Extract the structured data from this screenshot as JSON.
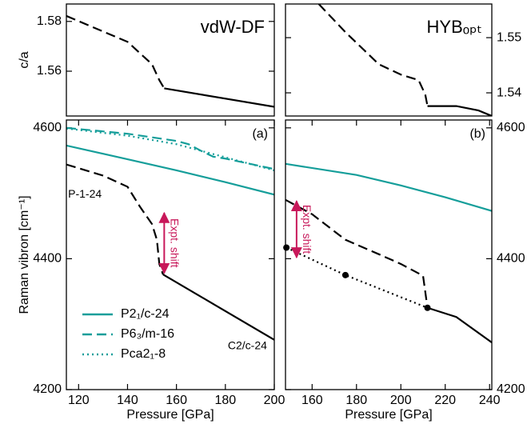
{
  "chart_data": [
    {
      "type": "line",
      "title": "vdW-DF",
      "ylabel": "c/a",
      "yaxis_side": "left",
      "xlim": [
        115,
        200
      ],
      "ylim": [
        1.542,
        1.587
      ],
      "yticks": [
        1.56,
        1.58
      ],
      "series": [
        {
          "color": "#000000",
          "dash": "dashed",
          "x": [
            115,
            140,
            150,
            153,
            155
          ],
          "values": [
            1.5822,
            1.5718,
            1.5628,
            1.5564,
            1.5531
          ]
        },
        {
          "color": "#000000",
          "dash": "solid",
          "x": [
            155,
            200
          ],
          "values": [
            1.5531,
            1.5457
          ]
        }
      ]
    },
    {
      "type": "line",
      "title": "HYBₒₚₜ",
      "yaxis_side": "right",
      "xlim": [
        148,
        241
      ],
      "ylim": [
        1.5358,
        1.5561
      ],
      "yticks": [
        1.54,
        1.55
      ],
      "series": [
        {
          "color": "#000000",
          "dash": "dashed",
          "x": [
            163,
            175,
            190,
            200,
            208,
            211,
            212
          ],
          "values": [
            1.5561,
            1.551,
            1.5452,
            1.5433,
            1.5423,
            1.5397,
            1.5376
          ]
        },
        {
          "color": "#000000",
          "dash": "solid",
          "x": [
            212,
            225,
            235,
            241
          ],
          "values": [
            1.5376,
            1.5376,
            1.5368,
            1.5358
          ]
        }
      ]
    },
    {
      "type": "line",
      "title": "(a)",
      "xlabel": "Pressure [GPa]",
      "ylabel": "Raman vibron [cm⁻¹]",
      "yaxis_side": "left",
      "xlim": [
        115,
        200
      ],
      "ylim": [
        4200,
        4612
      ],
      "xticks": [
        120,
        140,
        160,
        180,
        200
      ],
      "yticks": [
        4200,
        4400,
        4600
      ],
      "legend": "lower left",
      "series": [
        {
          "name": "P2₁/c-24",
          "color": "#159e9a",
          "dash": "solid",
          "x": [
            115,
            140,
            160,
            180,
            200
          ],
          "values": [
            4573,
            4552,
            4535,
            4517,
            4498
          ]
        },
        {
          "name": "P6₃/m-16",
          "color": "#159e9a",
          "dash": "dashed",
          "x": [
            115,
            140,
            160,
            165,
            170,
            175,
            180,
            200
          ],
          "values": [
            4600,
            4591,
            4580,
            4575,
            4565,
            4556,
            4553,
            4537
          ]
        },
        {
          "name": "Pca2₁-8",
          "color": "#159e9a",
          "dash": "dotted",
          "x": [
            115,
            140,
            160,
            180,
            200
          ],
          "values": [
            4599,
            4588,
            4575,
            4555,
            4535
          ]
        },
        {
          "color": "#000000",
          "dash": "dashed",
          "x": [
            115,
            130,
            140,
            145,
            150,
            152,
            153,
            154.5
          ],
          "values": [
            4544,
            4527,
            4510,
            4480,
            4453,
            4429,
            4392,
            4376
          ]
        },
        {
          "color": "#000000",
          "dash": "solid",
          "x": [
            154.5,
            200
          ],
          "values": [
            4376,
            4276
          ]
        }
      ],
      "annotations": [
        {
          "text": "P-1-24",
          "x": 115.7,
          "y": 4498
        },
        {
          "text": "C2/c-24",
          "x": 181,
          "y": 4266
        }
      ],
      "arrows": [
        {
          "text": "Expt. shift",
          "x": 155,
          "y": [
            4470,
            4378
          ],
          "color": "#c8185a"
        }
      ]
    },
    {
      "type": "line",
      "title": "(b)",
      "xlabel": "Pressure [GPa]",
      "yaxis_side": "right",
      "xlim": [
        148,
        241
      ],
      "ylim": [
        4200,
        4612
      ],
      "xticks": [
        160,
        180,
        200,
        220,
        240
      ],
      "yticks": [
        4200,
        4400,
        4600
      ],
      "series": [
        {
          "color": "#159e9a",
          "dash": "solid",
          "x": [
            148,
            180,
            200,
            220,
            241
          ],
          "values": [
            4545,
            4528,
            4512,
            4494,
            4473
          ]
        },
        {
          "color": "#000000",
          "dash": "dashed",
          "x": [
            148,
            160,
            175,
            190,
            200,
            210,
            212
          ],
          "values": [
            4490,
            4468,
            4429,
            4407,
            4392,
            4374,
            4325
          ]
        },
        {
          "color": "#000000",
          "dash": "solid",
          "x": [
            212,
            225,
            241
          ],
          "values": [
            4325,
            4311,
            4272
          ]
        },
        {
          "color": "#000000",
          "dash": "dotted",
          "markers": true,
          "x": [
            148.4,
            175,
            212
          ],
          "values": [
            4417,
            4375,
            4325
          ]
        }
      ],
      "arrows": [
        {
          "text": "Expt. shift",
          "x": 153,
          "y": [
            4488,
            4402
          ],
          "color": "#c8185a"
        }
      ]
    }
  ]
}
